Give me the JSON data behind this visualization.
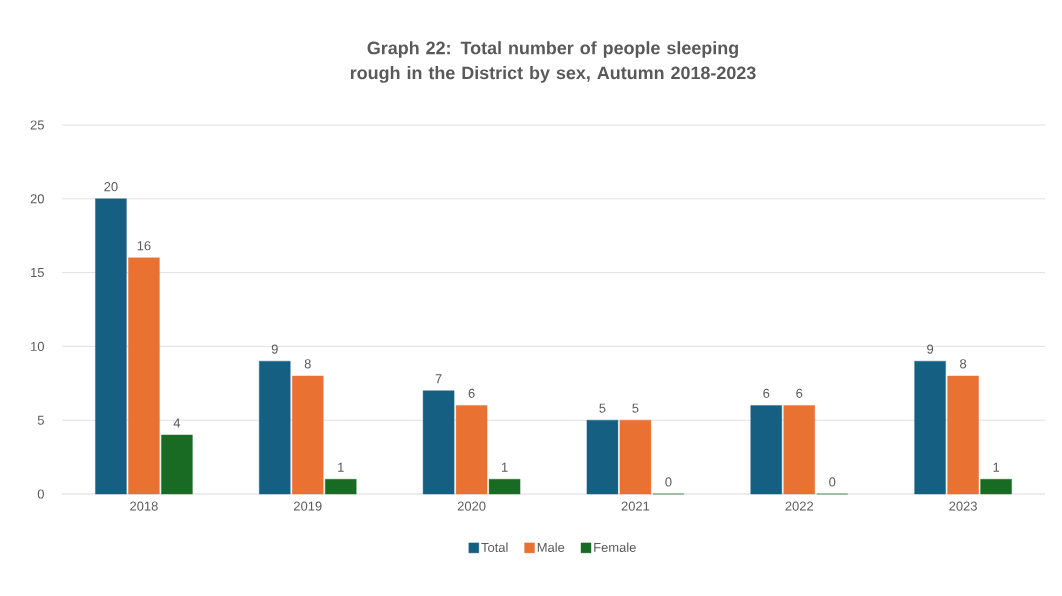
{
  "chart_data": {
    "type": "bar",
    "title": "Graph 22: Total number of people sleeping rough in the District by sex, Autumn 2018-2023",
    "categories": [
      "2018",
      "2019",
      "2020",
      "2021",
      "2022",
      "2023"
    ],
    "series": [
      {
        "name": "Total",
        "color": "#156082",
        "values": [
          20,
          9,
          7,
          5,
          6,
          9
        ]
      },
      {
        "name": "Male",
        "color": "#e97132",
        "values": [
          16,
          8,
          6,
          5,
          6,
          8
        ]
      },
      {
        "name": "Female",
        "color": "#196b24",
        "values": [
          4,
          1,
          1,
          0,
          0,
          1
        ]
      }
    ],
    "ylim": [
      0,
      25
    ],
    "yticks": [
      0,
      5,
      10,
      15,
      20,
      25
    ],
    "grid": "y",
    "legend": "bottom",
    "data_labels": true
  }
}
